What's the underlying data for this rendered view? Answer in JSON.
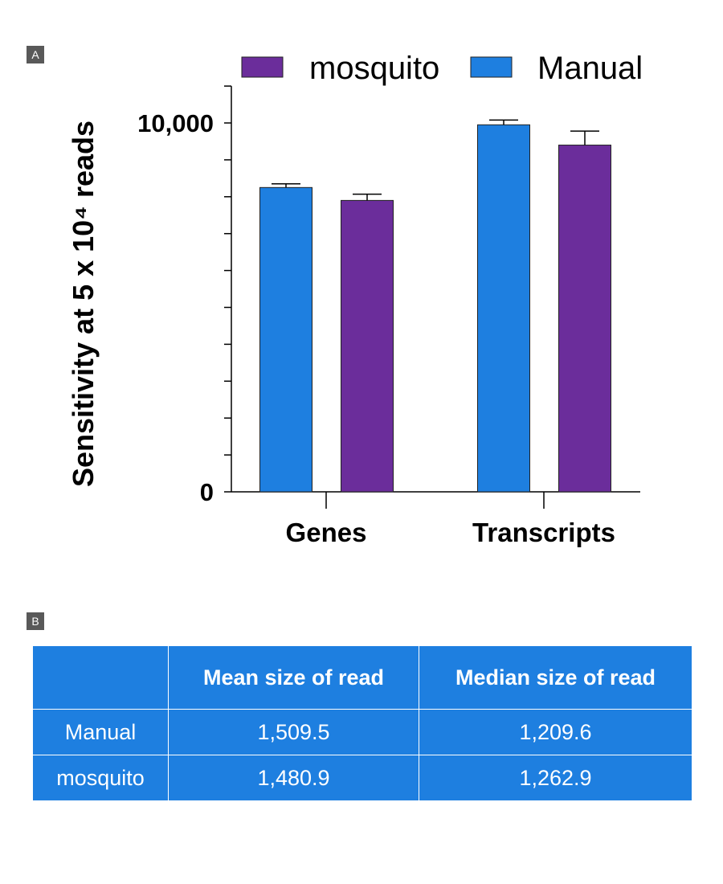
{
  "panel_a_label": "A",
  "panel_b_label": "B",
  "chart_data": {
    "type": "bar",
    "categories": [
      "Genes",
      "Transcripts"
    ],
    "series": [
      {
        "name": "Manual",
        "values": [
          8250,
          9950
        ],
        "errors": [
          100,
          130
        ],
        "color": "#1e7fe0"
      },
      {
        "name": "mosquito",
        "values": [
          7900,
          9400
        ],
        "errors": [
          170,
          380
        ],
        "color": "#6b2d9b"
      }
    ],
    "legend_order": [
      "mosquito",
      "Manual"
    ],
    "legend_placement": "top",
    "ylabel": "Sensitivity at 5 x 10⁴ reads",
    "ylim": [
      0,
      11000
    ],
    "ytick_labels": [
      "0",
      "10,000"
    ],
    "ytick_values": [
      0,
      10000
    ],
    "minor_tick_step": 1000,
    "grid": false
  },
  "table": {
    "headers": [
      "",
      "Mean size of read",
      "Median size of read"
    ],
    "rows": [
      [
        "Manual",
        "1,509.5",
        "1,209.6"
      ],
      [
        "mosquito",
        "1,480.9",
        "1,262.9"
      ]
    ],
    "color": "#1e7fe0"
  }
}
